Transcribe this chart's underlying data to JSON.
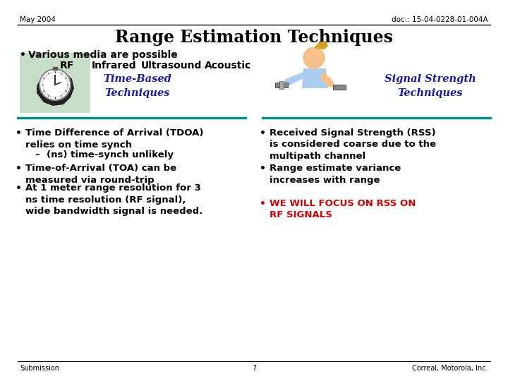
{
  "bg_color": "#ffffff",
  "header_left": "May 2004",
  "header_right": "doc.: 15-04-0228-01-004A",
  "title": "Range Estimation Techniques",
  "bullet1": "Various media are possible",
  "media_line": "RF       Infrared      Ultrasound      Acoustic",
  "time_based_label": "Time-Based\nTechniques",
  "signal_strength_label": "Signal Strength\nTechniques",
  "left_bullets": [
    "Time Difference of Arrival (TDOA)\nrelies on time synch",
    "–  (ns) time-synch unlikely",
    "Time-of-Arrival (TOA) can be\nmeasured via round-trip",
    "At 1 meter range resolution for 3\nns time resolution (RF signal),\nwide bandwidth signal is needed."
  ],
  "right_bullets": [
    "Received Signal Strength (RSS)\nis considered coarse due to the\nmultipath channel",
    "Range estimate variance\nincreases with range"
  ],
  "focus_bullet": "WE WILL FOCUS ON RSS ON\nRF SIGNALS",
  "footer_left": "Submission",
  "footer_center": "7",
  "footer_right": "Correal, Motorola, Inc.",
  "teal_color": "#009090",
  "blue_italic_color": "#1a1aaa",
  "red_color": "#cc0000",
  "black": "#000000",
  "img_bg_color": "#c8ddc8"
}
